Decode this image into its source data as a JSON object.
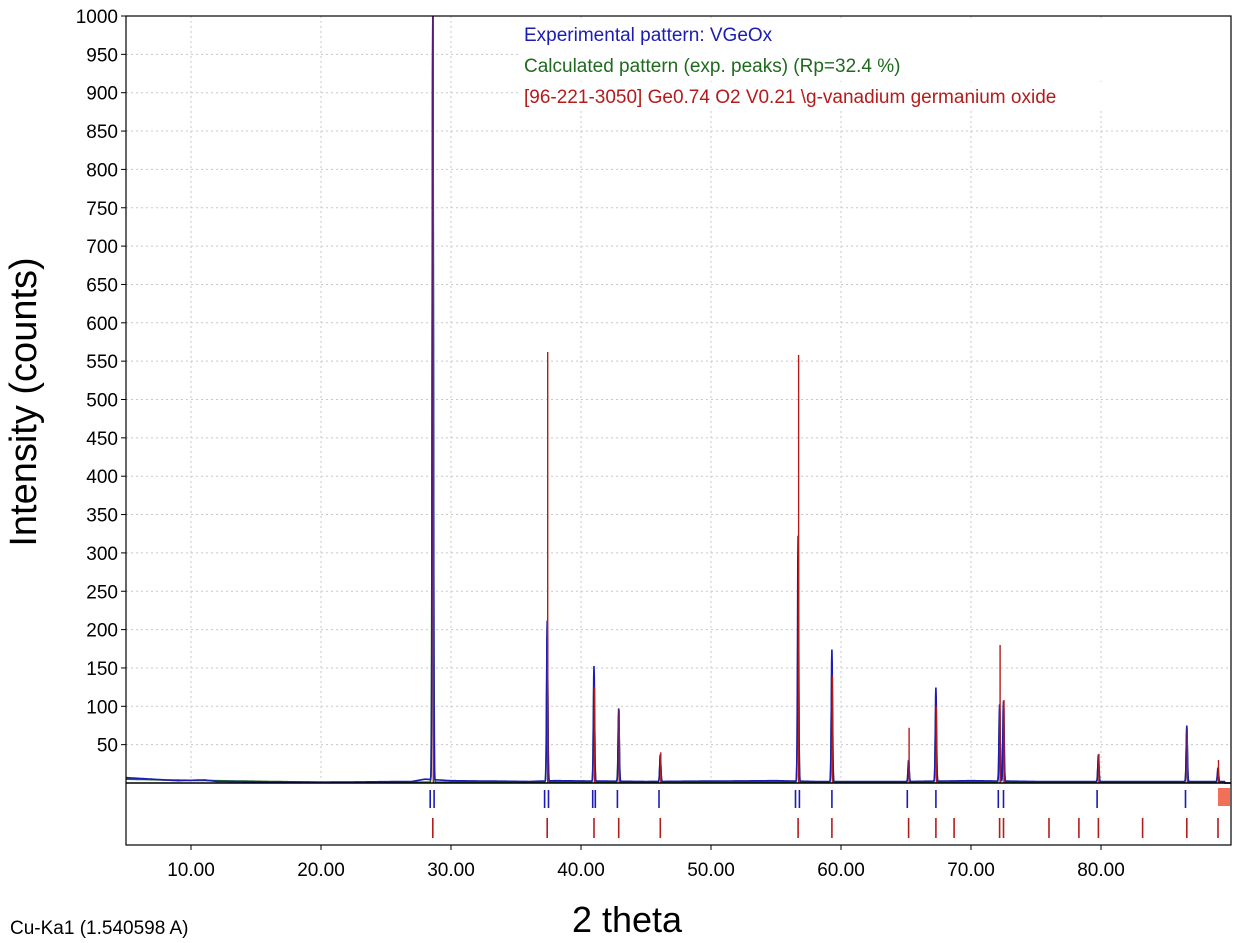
{
  "chart_data": {
    "type": "line",
    "xlabel": "2 theta",
    "ylabel": "Intensity (counts)",
    "footer_note": "Cu-Ka1 (1.540598 A)",
    "xlim": [
      5,
      90
    ],
    "ylim": [
      0,
      1000
    ],
    "grid": true,
    "legend_position": "top-right",
    "x_ticks": [
      "10.00",
      "20.00",
      "30.00",
      "40.00",
      "50.00",
      "60.00",
      "70.00",
      "80.00"
    ],
    "y_ticks": [
      "50",
      "100",
      "150",
      "200",
      "250",
      "300",
      "350",
      "400",
      "450",
      "500",
      "550",
      "600",
      "650",
      "700",
      "750",
      "800",
      "850",
      "900",
      "950",
      "1000"
    ],
    "legend": [
      {
        "text": "Experimental pattern: VGeOx",
        "color": "#1c1cb4"
      },
      {
        "text": "Calculated pattern (exp. peaks) (Rp=32.4 %)",
        "color": "#1e6b1e"
      },
      {
        "text": "[96-221-3050] Ge0.74 O2 V0.21 \\g-vanadium germanium oxide",
        "color": "#b41c1c"
      }
    ],
    "series": [
      {
        "name": "Experimental pattern: VGeOx",
        "color": "#1c1cb4",
        "baseline": [
          [
            5,
            7
          ],
          [
            7,
            5
          ],
          [
            9,
            3
          ],
          [
            11,
            4
          ],
          [
            12,
            2
          ],
          [
            20,
            1
          ],
          [
            27,
            2
          ],
          [
            28,
            5
          ],
          [
            30,
            3
          ],
          [
            36,
            2
          ],
          [
            38,
            3
          ],
          [
            45,
            2
          ],
          [
            55,
            3
          ],
          [
            58,
            2
          ],
          [
            65,
            2
          ],
          [
            70,
            3
          ],
          [
            75,
            2
          ],
          [
            80,
            2
          ],
          [
            85,
            2
          ],
          [
            89.5,
            2
          ]
        ],
        "peaks": [
          [
            28.6,
            1000
          ],
          [
            37.4,
            209
          ],
          [
            41.0,
            150
          ],
          [
            42.9,
            95
          ],
          [
            46.1,
            35
          ],
          [
            56.7,
            320
          ],
          [
            59.3,
            172
          ],
          [
            65.2,
            28
          ],
          [
            67.3,
            122
          ],
          [
            72.2,
            100
          ],
          [
            72.5,
            105
          ],
          [
            79.8,
            35
          ],
          [
            86.6,
            73
          ],
          [
            89.0,
            18
          ]
        ]
      },
      {
        "name": "Calculated pattern (exp. peaks) (Rp=32.4 %)",
        "color": "#1e6b1e",
        "baseline": [
          [
            5,
            5
          ],
          [
            8,
            4
          ],
          [
            12,
            3
          ],
          [
            20,
            1
          ],
          [
            30,
            1
          ],
          [
            40,
            1
          ],
          [
            60,
            1
          ],
          [
            89.5,
            1
          ]
        ],
        "peaks": [
          [
            28.6,
            1000
          ],
          [
            37.4,
            190
          ],
          [
            41.0,
            130
          ],
          [
            42.9,
            85
          ],
          [
            46.1,
            30
          ],
          [
            56.7,
            190
          ],
          [
            59.3,
            145
          ],
          [
            65.2,
            25
          ],
          [
            67.3,
            95
          ],
          [
            72.2,
            95
          ],
          [
            72.5,
            100
          ],
          [
            79.8,
            30
          ],
          [
            86.6,
            65
          ],
          [
            89.0,
            15
          ]
        ]
      }
    ],
    "reference_peaks": {
      "name": "[96-221-3050] Ge0.74 O2 V0.21 \\g-vanadium germanium oxide",
      "color": "#b41c1c",
      "peaks": [
        [
          28.6,
          1000
        ],
        [
          37.4,
          562
        ],
        [
          41.0,
          125
        ],
        [
          42.9,
          95
        ],
        [
          46.1,
          40
        ],
        [
          56.7,
          558
        ],
        [
          59.3,
          140
        ],
        [
          65.2,
          72
        ],
        [
          67.3,
          100
        ],
        [
          72.2,
          180
        ],
        [
          72.5,
          108
        ],
        [
          79.8,
          38
        ],
        [
          86.6,
          70
        ],
        [
          89.0,
          30
        ]
      ]
    },
    "tick_marks_experimental": [
      28.4,
      28.7,
      37.2,
      37.5,
      40.9,
      41.1,
      42.8,
      46.0,
      56.5,
      56.8,
      59.3,
      65.1,
      67.3,
      72.1,
      72.5,
      79.7,
      86.5
    ],
    "tick_marks_reference": [
      28.6,
      37.4,
      41.0,
      42.9,
      46.1,
      56.7,
      59.3,
      65.2,
      67.3,
      68.7,
      72.2,
      72.5,
      76.0,
      78.3,
      79.8,
      83.2,
      86.6,
      89.0
    ]
  }
}
